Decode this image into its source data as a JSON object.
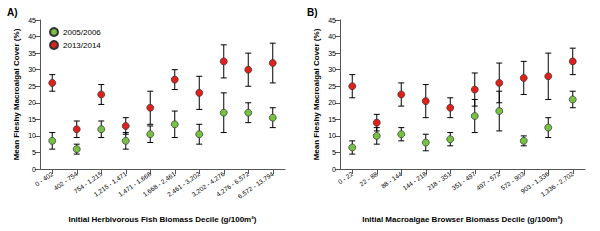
{
  "chart_data": [
    {
      "type": "scatter",
      "title": "A)",
      "x_label": "Initial Herbivorous Fish Biomass Decile (g/100m²)",
      "y_label": "Mean Fleshy Macroalgal Cover (%)",
      "categories": [
        "0 - 402",
        "402 - 754",
        "754 - 1,215",
        "1,215 - 1,471",
        "1,471 - 1,668",
        "1,668 - 2,461",
        "2,461 - 3,202",
        "3,202 - 4,276",
        "4,276 - 6,572",
        "6,572 - 13,794"
      ],
      "series": [
        {
          "name": "2005/2006",
          "color": "#76c043",
          "marker": "circle",
          "values": [
            8.5,
            6,
            12,
            8.5,
            10.5,
            13.5,
            10.5,
            17,
            17,
            15.5
          ],
          "errors": [
            2.5,
            1.5,
            2.5,
            2.5,
            2.5,
            4,
            3,
            6,
            3,
            3
          ]
        },
        {
          "name": "2013/2014",
          "color": "#e0201b",
          "marker": "circle",
          "values": [
            26,
            12,
            22.5,
            13,
            18.5,
            27,
            23,
            32.5,
            30,
            32
          ],
          "errors": [
            2.5,
            2.5,
            3,
            2.5,
            5,
            3,
            5,
            5,
            5,
            6
          ]
        }
      ],
      "ylim": [
        0,
        45
      ],
      "yticks": [
        0,
        5,
        10,
        15,
        20,
        25,
        30,
        35,
        40,
        45
      ],
      "grid": false,
      "legend": "upper left"
    },
    {
      "type": "scatter",
      "title": "B)",
      "x_label": "Initial Macroalgae Browser Biomass Decile (g/100m²)",
      "y_label": "Mean Fleshy Macroalgal Cover (%)",
      "categories": [
        "0 - 22",
        "22 - 88",
        "88 - 144",
        "144 - 218",
        "218 - 351",
        "351 - 497",
        "497 - 572",
        "572 - 903",
        "903 - 1,336",
        "1,336 - 2,702"
      ],
      "series": [
        {
          "name": "2005/2006",
          "color": "#76c043",
          "marker": "circle",
          "values": [
            6.5,
            10,
            10.5,
            8,
            9,
            16,
            17.5,
            8.5,
            12.5,
            21
          ],
          "errors": [
            2,
            2.5,
            2,
            2.5,
            2,
            5,
            6,
            1.5,
            3,
            2.5
          ]
        },
        {
          "name": "2013/2014",
          "color": "#e0201b",
          "marker": "circle",
          "values": [
            25,
            14,
            22.5,
            20.5,
            18.5,
            24,
            26,
            27.5,
            28,
            32.5
          ],
          "errors": [
            3.5,
            2.5,
            3.5,
            5,
            3,
            5,
            6,
            5,
            7,
            4
          ]
        }
      ],
      "ylim": [
        0,
        45
      ],
      "yticks": [
        0,
        5,
        10,
        15,
        20,
        25,
        30,
        35,
        40,
        45
      ],
      "grid": false
    }
  ]
}
